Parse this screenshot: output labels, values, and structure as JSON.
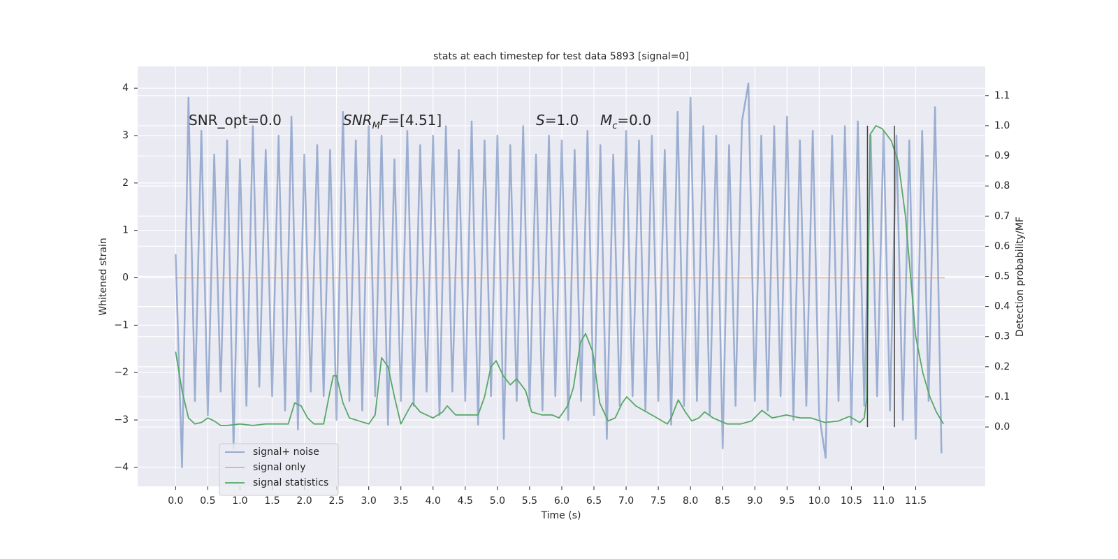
{
  "chart_data": {
    "type": "line",
    "title": "stats at each timestep for test data 5893 [signal=0]",
    "xlabel": "Time (s)",
    "ylabel": "Whitened strain",
    "y2label": "Detection probability/MF",
    "xlim": [
      -0.59,
      12.58
    ],
    "ylim": [
      -4.4,
      4.46
    ],
    "y2lim": [
      -0.197,
      1.197
    ],
    "grid": true,
    "legend": "lower left",
    "xticks": [
      {
        "value": 0,
        "label": "0.0"
      },
      {
        "value": 0.5,
        "label": "0.5"
      },
      {
        "value": 1,
        "label": "1.0"
      },
      {
        "value": 1.5,
        "label": "1.5"
      },
      {
        "value": 2,
        "label": "2.0"
      },
      {
        "value": 2.5,
        "label": "2.5"
      },
      {
        "value": 3,
        "label": "3.0"
      },
      {
        "value": 3.5,
        "label": "3.5"
      },
      {
        "value": 4,
        "label": "4.0"
      },
      {
        "value": 4.5,
        "label": "4.5"
      },
      {
        "value": 5,
        "label": "5.0"
      },
      {
        "value": 5.5,
        "label": "5.5"
      },
      {
        "value": 6,
        "label": "6.0"
      },
      {
        "value": 6.5,
        "label": "6.5"
      },
      {
        "value": 7,
        "label": "7.0"
      },
      {
        "value": 7.5,
        "label": "7.5"
      },
      {
        "value": 8,
        "label": "8.0"
      },
      {
        "value": 8.5,
        "label": "8.5"
      },
      {
        "value": 9,
        "label": "9.0"
      },
      {
        "value": 9.5,
        "label": "9.5"
      },
      {
        "value": 10,
        "label": "10.0"
      },
      {
        "value": 10.5,
        "label": "10.5"
      },
      {
        "value": 11,
        "label": "11.0"
      },
      {
        "value": 11.5,
        "label": "11.5"
      }
    ],
    "yticks": [
      {
        "value": -4,
        "label": "−4"
      },
      {
        "value": -3,
        "label": "−3"
      },
      {
        "value": -2,
        "label": "−2"
      },
      {
        "value": -1,
        "label": "−1"
      },
      0,
      1,
      2,
      3,
      4
    ],
    "y2ticks": [
      {
        "value": 0,
        "label": "0.0"
      },
      {
        "value": 0.1,
        "label": "0.1"
      },
      {
        "value": 0.2,
        "label": "0.2"
      },
      {
        "value": 0.3,
        "label": "0.3"
      },
      {
        "value": 0.4,
        "label": "0.4"
      },
      {
        "value": 0.5,
        "label": "0.5"
      },
      {
        "value": 0.6,
        "label": "0.6"
      },
      {
        "value": 0.7,
        "label": "0.7"
      },
      {
        "value": 0.8,
        "label": "0.8"
      },
      {
        "value": 0.9,
        "label": "0.9"
      },
      {
        "value": 1,
        "label": "1.0"
      },
      {
        "value": 1.1,
        "label": "1.1"
      }
    ],
    "annotations": [
      [
        {
          "text": "SNR_opt=0.0"
        }
      ],
      [
        {
          "text": "SNR",
          "style": "italic"
        },
        {
          "text": "M",
          "style": "sub"
        },
        {
          "text": "F",
          "style": "italic"
        },
        {
          "text": "=[4.51]"
        }
      ],
      [
        {
          "text": "S",
          "style": "italic"
        },
        {
          "text": "=1.0"
        }
      ],
      [
        {
          "text": "M",
          "style": "italic"
        },
        {
          "text": "c",
          "style": "sub"
        },
        {
          "text": "=0.0"
        }
      ]
    ],
    "vlines": {
      "x": [
        10.75,
        11.17
      ],
      "ymin": 0,
      "ymax": 1,
      "axis": "y2",
      "color": "#444444"
    },
    "series": [
      {
        "name": "signal+ noise",
        "color": "#4c72b0",
        "x": [
          0,
          0.1,
          0.2,
          0.3,
          0.4,
          0.5,
          0.6,
          0.7,
          0.8,
          0.9,
          1,
          1.1,
          1.2,
          1.3,
          1.4,
          1.5,
          1.6,
          1.7,
          1.8,
          1.9,
          2,
          2.1,
          2.2,
          2.3,
          2.4,
          2.5,
          2.6,
          2.7,
          2.8,
          2.9,
          3,
          3.1,
          3.2,
          3.3,
          3.4,
          3.5,
          3.6,
          3.7,
          3.8,
          3.9,
          4,
          4.1,
          4.2,
          4.3,
          4.4,
          4.5,
          4.6,
          4.7,
          4.8,
          4.9,
          5,
          5.1,
          5.2,
          5.3,
          5.4,
          5.5,
          5.6,
          5.7,
          5.8,
          5.9,
          6,
          6.1,
          6.2,
          6.3,
          6.4,
          6.5,
          6.6,
          6.7,
          6.8,
          6.9,
          7,
          7.1,
          7.2,
          7.3,
          7.4,
          7.5,
          7.6,
          7.7,
          7.8,
          7.9,
          8,
          8.1,
          8.2,
          8.3,
          8.4,
          8.5,
          8.6,
          8.7,
          8.8,
          8.9,
          9,
          9.1,
          9.2,
          9.3,
          9.4,
          9.5,
          9.6,
          9.7,
          9.8,
          9.9,
          10,
          10.1,
          10.2,
          10.3,
          10.4,
          10.5,
          10.6,
          10.7,
          10.8,
          10.9,
          11,
          11.1,
          11.2,
          11.3,
          11.4,
          11.5,
          11.6,
          11.7,
          11.8,
          11.9
        ],
        "values": [
          0.5,
          -4.0,
          3.8,
          -2.6,
          3.1,
          -2.9,
          2.6,
          -2.4,
          2.9,
          -3.6,
          2.5,
          -2.7,
          3.2,
          -2.3,
          2.7,
          -2.5,
          3.0,
          -2.8,
          3.4,
          -3.2,
          2.6,
          -2.4,
          2.8,
          -2.5,
          2.7,
          -3.0,
          3.5,
          -2.6,
          2.9,
          -2.8,
          3.2,
          -2.5,
          3.0,
          -3.1,
          2.5,
          -2.6,
          3.1,
          -2.7,
          2.8,
          -2.4,
          3.0,
          -2.9,
          3.2,
          -2.4,
          2.7,
          -2.6,
          3.3,
          -3.1,
          2.9,
          -2.5,
          3.0,
          -3.4,
          2.8,
          -2.6,
          3.2,
          -2.7,
          2.6,
          -2.8,
          3.0,
          -2.5,
          2.9,
          -3.0,
          2.7,
          -2.6,
          3.1,
          -2.9,
          2.8,
          -3.4,
          2.6,
          -2.7,
          3.1,
          -2.5,
          2.9,
          -2.8,
          3.0,
          -2.6,
          2.7,
          -3.1,
          3.5,
          -2.7,
          3.8,
          -2.6,
          3.2,
          -2.9,
          3.0,
          -3.6,
          2.8,
          -2.7,
          3.3,
          4.1,
          -2.6,
          3.0,
          -2.8,
          3.2,
          -2.5,
          3.4,
          -3.0,
          2.9,
          -2.7,
          3.1,
          -2.9,
          -3.8,
          3.0,
          -2.6,
          3.2,
          -3.1,
          3.3,
          -2.7,
          3.0,
          -2.5,
          3.1,
          -2.8,
          3.0,
          -3.0,
          2.9,
          -3.4,
          3.1,
          -2.6,
          3.6,
          -3.7
        ]
      },
      {
        "name": "signal only",
        "color": "#dd8452",
        "x": [
          0,
          11.95
        ],
        "values": [
          0,
          0
        ]
      },
      {
        "name": "signal statistics",
        "color": "#55a868",
        "axis": "y2",
        "x": [
          0,
          0.1,
          0.2,
          0.3,
          0.4,
          0.5,
          0.6,
          0.7,
          0.8,
          1,
          1.2,
          1.4,
          1.6,
          1.75,
          1.85,
          1.95,
          2.05,
          2.15,
          2.3,
          2.4,
          2.45,
          2.5,
          2.6,
          2.7,
          2.85,
          3,
          3.1,
          3.2,
          3.3,
          3.4,
          3.5,
          3.6,
          3.68,
          3.8,
          4,
          4.15,
          4.22,
          4.35,
          4.5,
          4.7,
          4.8,
          4.9,
          4.98,
          5.09,
          5.2,
          5.3,
          5.44,
          5.53,
          5.69,
          5.85,
          5.96,
          6.09,
          6.18,
          6.29,
          6.37,
          6.48,
          6.59,
          6.72,
          6.83,
          6.94,
          7.01,
          7.15,
          7.48,
          7.64,
          7.7,
          7.81,
          7.92,
          8.02,
          8.13,
          8.22,
          8.35,
          8.57,
          8.78,
          8.95,
          9.11,
          9.27,
          9.49,
          9.71,
          9.87,
          10.09,
          10.3,
          10.47,
          10.63,
          10.7,
          10.74,
          10.79,
          10.88,
          10.98,
          11.12,
          11.23,
          11.34,
          11.42,
          11.5,
          11.61,
          11.72,
          11.82,
          11.93
        ],
        "values": [
          0.25,
          0.12,
          0.03,
          0.01,
          0.015,
          0.03,
          0.02,
          0.005,
          0.005,
          0.01,
          0.005,
          0.01,
          0.01,
          0.01,
          0.08,
          0.07,
          0.03,
          0.01,
          0.01,
          0.12,
          0.17,
          0.17,
          0.08,
          0.03,
          0.02,
          0.01,
          0.04,
          0.23,
          0.2,
          0.1,
          0.01,
          0.05,
          0.08,
          0.05,
          0.03,
          0.05,
          0.07,
          0.04,
          0.04,
          0.04,
          0.1,
          0.2,
          0.22,
          0.17,
          0.14,
          0.16,
          0.12,
          0.05,
          0.04,
          0.04,
          0.03,
          0.07,
          0.13,
          0.28,
          0.31,
          0.25,
          0.08,
          0.02,
          0.03,
          0.08,
          0.1,
          0.07,
          0.03,
          0.01,
          0.03,
          0.09,
          0.05,
          0.02,
          0.03,
          0.05,
          0.03,
          0.01,
          0.01,
          0.02,
          0.055,
          0.03,
          0.04,
          0.03,
          0.03,
          0.015,
          0.02,
          0.035,
          0.015,
          0.03,
          0.1,
          0.97,
          1.0,
          0.99,
          0.95,
          0.88,
          0.7,
          0.5,
          0.3,
          0.18,
          0.1,
          0.05,
          0.01
        ]
      }
    ]
  }
}
